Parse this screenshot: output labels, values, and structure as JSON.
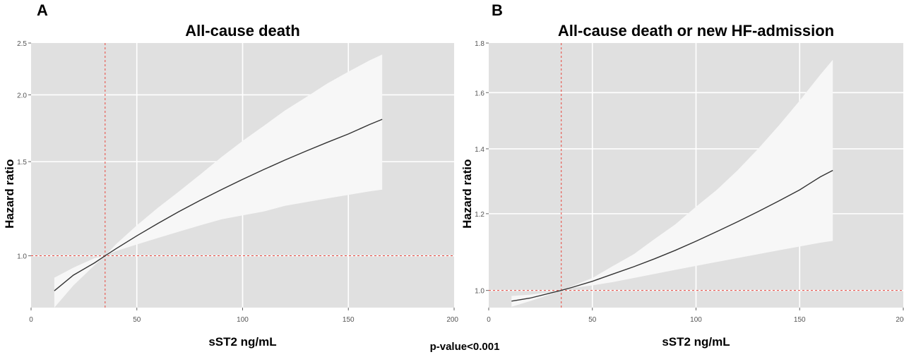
{
  "pvalue": "p-value<0.001",
  "chart_data": [
    {
      "type": "line",
      "panel": "A",
      "title": "All-cause death",
      "xlabel": "sST2 ng/mL",
      "ylabel": "Hazard ratio",
      "xlim": [
        0,
        200
      ],
      "ylim": [
        0.8,
        2.5
      ],
      "yscale": "log",
      "xticks": [
        0,
        50,
        100,
        150,
        200
      ],
      "yticks": [
        1.0,
        1.5,
        2.0,
        2.5
      ],
      "ytick_labels": [
        "1.0",
        "1.5",
        "2.0",
        "2.5"
      ],
      "reference_x": 35,
      "reference_y": 1.0,
      "series": [
        {
          "name": "Hazard ratio",
          "x": [
            11,
            20,
            30,
            35,
            40,
            50,
            60,
            70,
            80,
            90,
            100,
            110,
            120,
            130,
            140,
            150,
            160,
            166
          ],
          "y": [
            0.86,
            0.92,
            0.97,
            1.0,
            1.03,
            1.09,
            1.15,
            1.21,
            1.27,
            1.33,
            1.39,
            1.45,
            1.51,
            1.57,
            1.63,
            1.69,
            1.76,
            1.8
          ],
          "lower": [
            0.8,
            0.88,
            0.96,
            1.0,
            1.02,
            1.05,
            1.08,
            1.11,
            1.14,
            1.17,
            1.19,
            1.21,
            1.24,
            1.26,
            1.28,
            1.3,
            1.32,
            1.33
          ],
          "upper": [
            0.91,
            0.95,
            0.99,
            1.0,
            1.05,
            1.14,
            1.23,
            1.32,
            1.42,
            1.53,
            1.64,
            1.75,
            1.87,
            1.98,
            2.1,
            2.21,
            2.32,
            2.38
          ]
        }
      ]
    },
    {
      "type": "line",
      "panel": "B",
      "title": "All-cause death or new HF-admission",
      "xlabel": "sST2 ng/mL",
      "ylabel": "Hazard ratio",
      "xlim": [
        0,
        200
      ],
      "ylim": [
        0.96,
        1.8
      ],
      "yscale": "log",
      "xticks": [
        0,
        50,
        100,
        150,
        200
      ],
      "yticks": [
        1.0,
        1.2,
        1.4,
        1.6,
        1.8
      ],
      "ytick_labels": [
        "1.0",
        "1.2",
        "1.4",
        "1.6",
        "1.8"
      ],
      "reference_x": 35,
      "reference_y": 1.0,
      "series": [
        {
          "name": "Hazard ratio",
          "x": [
            11,
            20,
            30,
            35,
            40,
            50,
            60,
            70,
            80,
            90,
            100,
            110,
            120,
            130,
            140,
            150,
            160,
            166
          ],
          "y": [
            0.975,
            0.982,
            0.994,
            1.0,
            1.007,
            1.022,
            1.04,
            1.058,
            1.078,
            1.1,
            1.124,
            1.15,
            1.177,
            1.206,
            1.237,
            1.27,
            1.31,
            1.33
          ],
          "lower": [
            0.962,
            0.975,
            0.991,
            1.0,
            1.006,
            1.012,
            1.02,
            1.03,
            1.04,
            1.05,
            1.06,
            1.07,
            1.08,
            1.09,
            1.1,
            1.11,
            1.12,
            1.125
          ],
          "upper": [
            0.987,
            0.99,
            0.996,
            1.0,
            1.01,
            1.03,
            1.06,
            1.09,
            1.13,
            1.17,
            1.22,
            1.27,
            1.33,
            1.4,
            1.48,
            1.57,
            1.67,
            1.73
          ]
        }
      ]
    }
  ]
}
